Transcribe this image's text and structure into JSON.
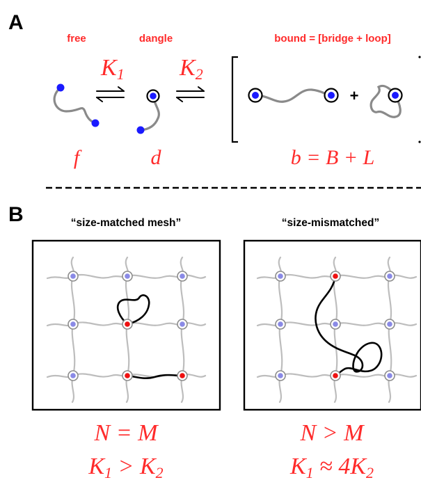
{
  "panel_a": {
    "letter": "A",
    "states": {
      "free": "free",
      "dangle": "dangle",
      "bound": "bound = [bridge + loop]"
    },
    "constants": {
      "k1_base": "K",
      "k1_sub": "1",
      "k2_base": "K",
      "k2_sub": "2"
    },
    "plus_sign": "+",
    "symbols": {
      "free": "f",
      "dangle": "d",
      "bound_eq": "b = B + L"
    }
  },
  "panel_b": {
    "letter": "B",
    "left": {
      "title": "“size-matched mesh”",
      "relation": "N = M",
      "k_left_base": "K",
      "k_left_sub": "1",
      "k_op": " > ",
      "k_right_base": "K",
      "k_right_sub": "2"
    },
    "right": {
      "title": "“size-mismatched”",
      "relation": "N > M",
      "k_left_base": "K",
      "k_left_sub": "1",
      "k_op": " ≈ 4",
      "k_right_base": "K",
      "k_right_sub": "2"
    }
  },
  "colors": {
    "label_red": "#ff2a2a",
    "end_blue": "#1a1aff",
    "node_blue": "#8a8ae6",
    "node_red": "#ee1111",
    "mesh_gray": "#bdbdbd",
    "chain_gray": "#8a8a8a"
  }
}
